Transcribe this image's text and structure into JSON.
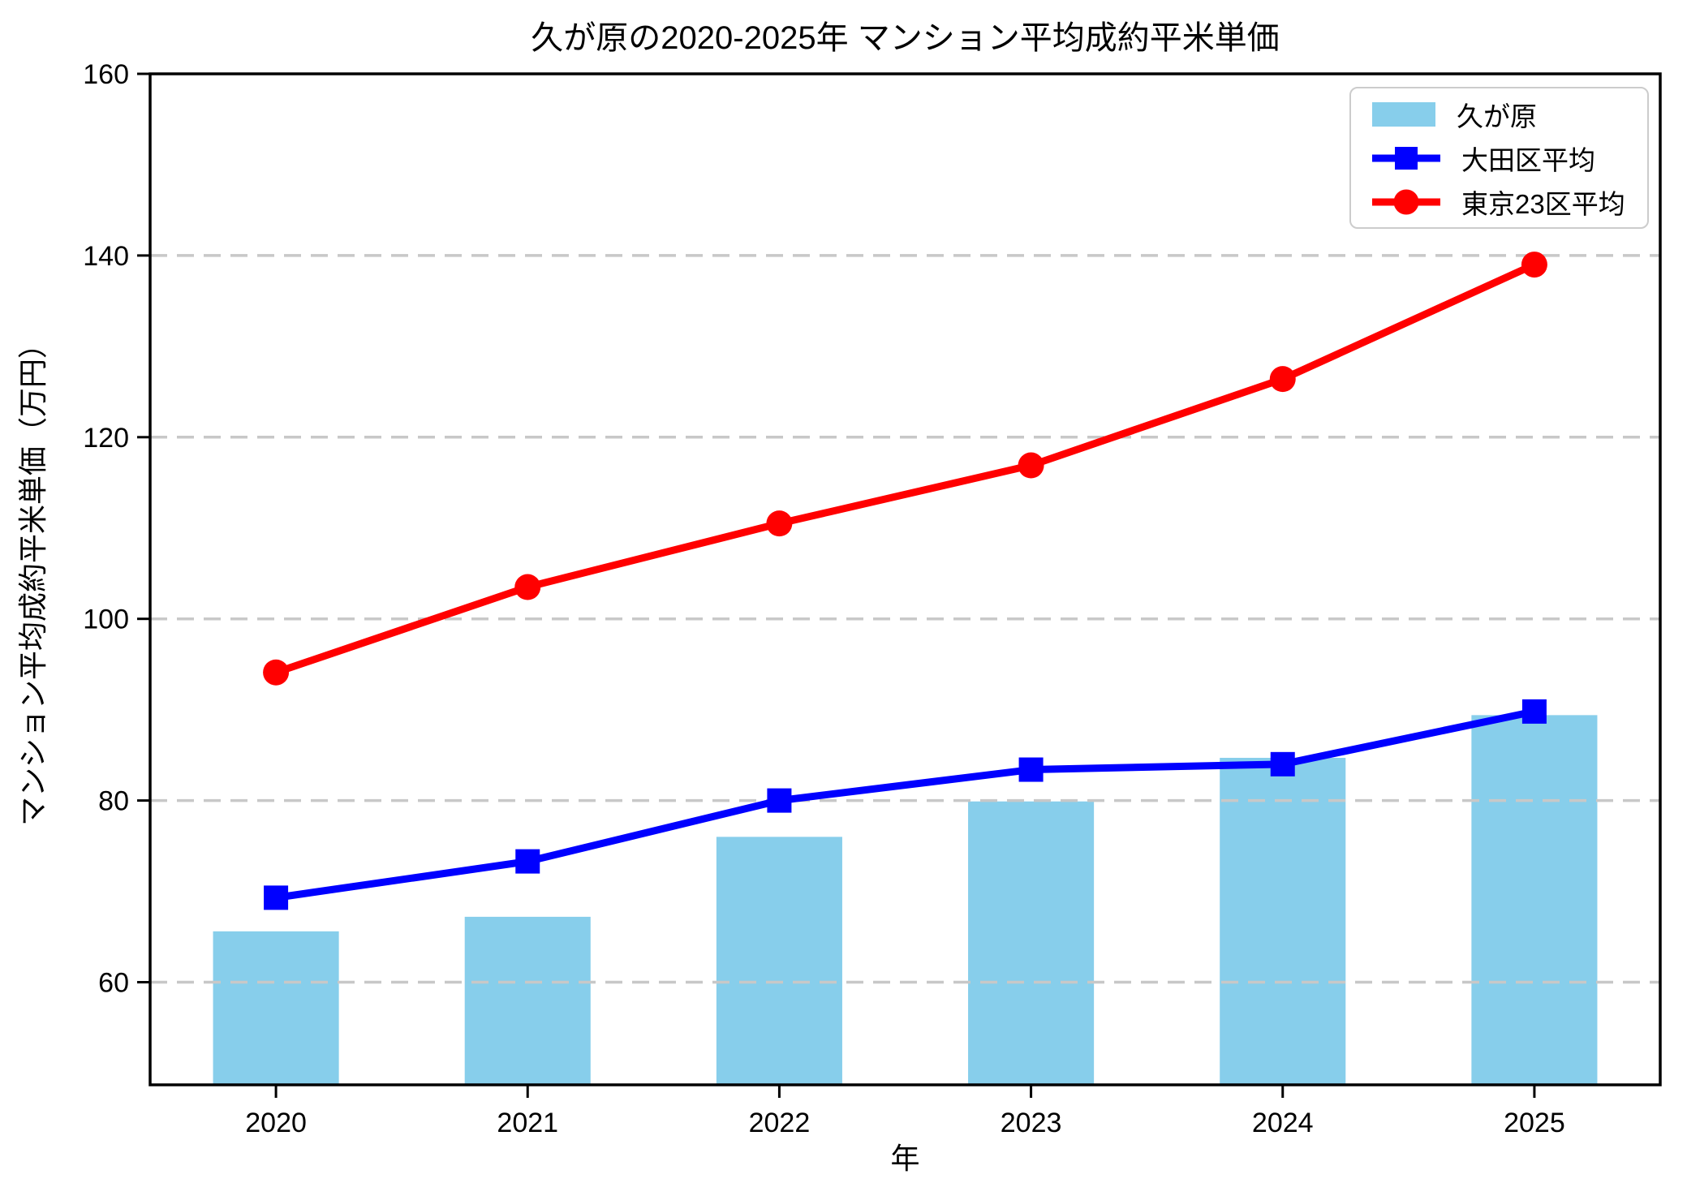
{
  "chart_data": {
    "type": "bar+line",
    "title": "久が原の2020-2025年 マンション平均成約平米単価",
    "xlabel": "年",
    "ylabel": "マンション平均成約平米単価（万円）",
    "categories": [
      "2020",
      "2021",
      "2022",
      "2023",
      "2024",
      "2025"
    ],
    "series": [
      {
        "name": "久が原",
        "type": "bar",
        "color": "#87CEEB",
        "values": [
          65.6,
          67.2,
          76.0,
          79.9,
          84.7,
          89.4
        ]
      },
      {
        "name": "大田区平均",
        "type": "line",
        "marker": "square",
        "color": "#0000FF",
        "values": [
          69.3,
          73.3,
          80.0,
          83.4,
          84.0,
          89.8
        ]
      },
      {
        "name": "東京23区平均",
        "type": "line",
        "marker": "circle",
        "color": "#FF0000",
        "values": [
          94.1,
          103.5,
          110.5,
          116.9,
          126.4,
          139.0
        ]
      }
    ],
    "yticks": [
      60,
      80,
      100,
      120,
      140,
      160
    ],
    "ylim": [
      48.7,
      160
    ],
    "xlim_categories": [
      -0.5,
      5.5
    ],
    "grid": "horizontal-dashed",
    "grid_color": "#c8c8c8",
    "axis_color": "#000000",
    "legend_position": "upper right"
  }
}
